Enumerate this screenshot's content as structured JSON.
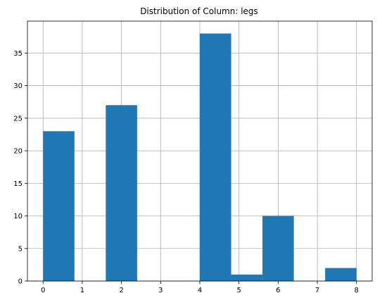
{
  "chart_data": {
    "type": "bar",
    "title": "Distribution of Column: legs",
    "xlabel": "",
    "ylabel": "",
    "xlim": [
      -0.4,
      8.4
    ],
    "ylim": [
      0,
      39.9
    ],
    "x_ticks": [
      0,
      1,
      2,
      3,
      4,
      5,
      6,
      7,
      8
    ],
    "y_ticks": [
      0,
      5,
      10,
      15,
      20,
      25,
      30,
      35
    ],
    "grid": true,
    "bar_color": "#1f77b4",
    "bins": [
      {
        "start": 0.0,
        "end": 0.8,
        "count": 23
      },
      {
        "start": 0.8,
        "end": 1.6,
        "count": 0
      },
      {
        "start": 1.6,
        "end": 2.4,
        "count": 27
      },
      {
        "start": 2.4,
        "end": 3.2,
        "count": 0
      },
      {
        "start": 3.2,
        "end": 4.0,
        "count": 0
      },
      {
        "start": 4.0,
        "end": 4.8,
        "count": 38
      },
      {
        "start": 4.8,
        "end": 5.6,
        "count": 1
      },
      {
        "start": 5.6,
        "end": 6.4,
        "count": 10
      },
      {
        "start": 6.4,
        "end": 7.2,
        "count": 0
      },
      {
        "start": 7.2,
        "end": 8.0,
        "count": 2
      }
    ]
  }
}
